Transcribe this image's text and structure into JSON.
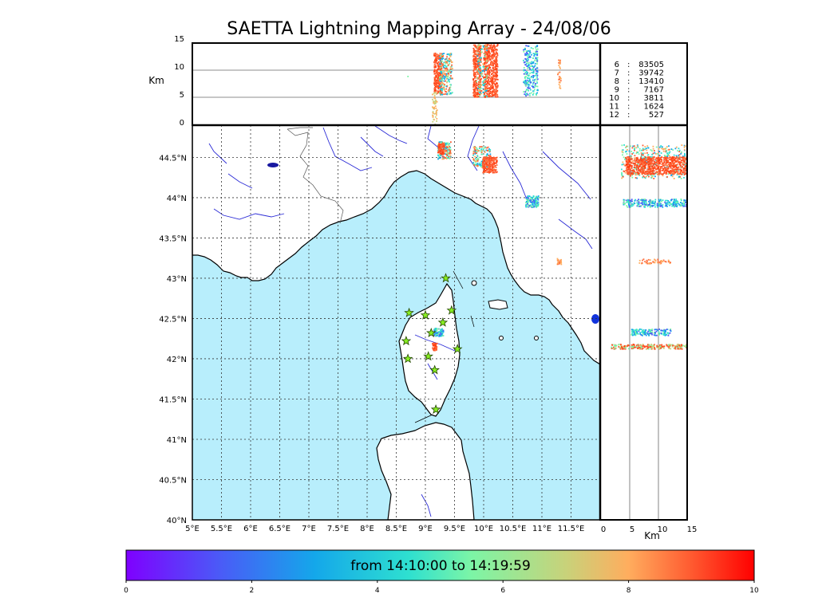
{
  "title": "SAETTA Lightning Mapping Array - 24/08/06",
  "colors": {
    "sea": "#b8eefc",
    "land": "#ffffff",
    "rivers": "#2b2bd6",
    "borders": "#555555",
    "station": "#88ee22"
  },
  "top_panel": {
    "ylabel": "Km",
    "y_ticks": [
      "15",
      "10",
      "5",
      "0"
    ],
    "legend": [
      {
        "stations": "6",
        "count": "83505",
        "color": "#000000"
      },
      {
        "stations": "7",
        "count": "39742",
        "color": "#e00000"
      },
      {
        "stations": "8",
        "count": "13410",
        "color": "#000000"
      },
      {
        "stations": "9",
        "count": "7167",
        "color": "#000000"
      },
      {
        "stations": "10",
        "count": "3811",
        "color": "#000000"
      },
      {
        "stations": "11",
        "count": "1624",
        "color": "#000000"
      },
      {
        "stations": "12",
        "count": "527",
        "color": "#000000"
      }
    ]
  },
  "map": {
    "lon_labels": [
      "5°E",
      "5.5°E",
      "6°E",
      "6.5°E",
      "7°E",
      "7.5°E",
      "8°E",
      "8.5°E",
      "9°E",
      "9.5°E",
      "10°E",
      "10.5°E",
      "11°E",
      "11.5°E"
    ],
    "lat_labels": [
      "44.5°N",
      "44°N",
      "43.5°N",
      "43°N",
      "42.5°N",
      "42°N",
      "41.5°N",
      "41°N",
      "40.5°N",
      "40°N"
    ],
    "stations": [
      {
        "lon": 9.35,
        "lat": 43.0
      },
      {
        "lon": 8.72,
        "lat": 42.57
      },
      {
        "lon": 9.0,
        "lat": 42.54
      },
      {
        "lon": 9.45,
        "lat": 42.6
      },
      {
        "lon": 9.3,
        "lat": 42.45
      },
      {
        "lon": 9.1,
        "lat": 42.32
      },
      {
        "lon": 8.67,
        "lat": 42.22
      },
      {
        "lon": 9.55,
        "lat": 42.12
      },
      {
        "lon": 8.7,
        "lat": 42.0
      },
      {
        "lon": 9.05,
        "lat": 42.03
      },
      {
        "lon": 9.16,
        "lat": 41.86
      },
      {
        "lon": 9.18,
        "lat": 41.37
      }
    ]
  },
  "side_panel": {
    "xlabel": "Km",
    "x_ticks": [
      "0",
      "5",
      "10",
      "15"
    ]
  },
  "colorbar": {
    "label": "from 14:10:00 to 14:19:59",
    "ticks": [
      "0",
      "2",
      "4",
      "6",
      "8",
      "10"
    ]
  }
}
